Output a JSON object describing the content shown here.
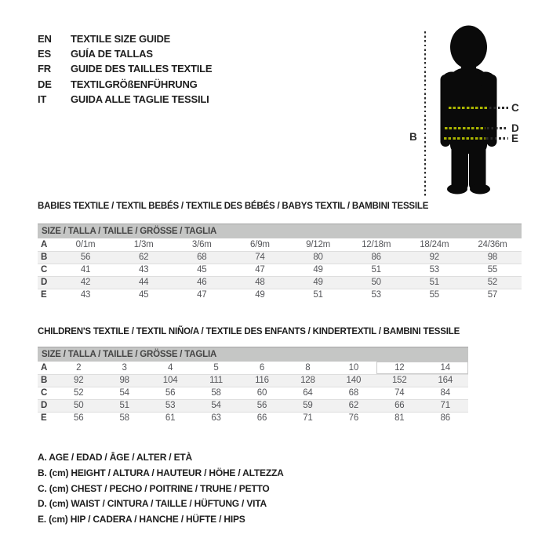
{
  "languages": [
    {
      "code": "EN",
      "title": "TEXTILE SIZE GUIDE"
    },
    {
      "code": "ES",
      "title": "GUÍA DE TALLAS"
    },
    {
      "code": "FR",
      "title": "GUIDE DES TAILLES TEXTILE"
    },
    {
      "code": "DE",
      "title": "TEXTILGRÖßENFÜHRUNG"
    },
    {
      "code": "IT",
      "title": "GUIDA ALLE TAGLIE TESSILI"
    }
  ],
  "figure": {
    "labels": {
      "height": "B",
      "chest": "C",
      "waist": "D",
      "hip": "E"
    },
    "dash_color": "#a9b400",
    "line_color": "#2b2b2b",
    "silhouette_color": "#0a0a0a"
  },
  "babies_table": {
    "section_title": "BABIES TEXTILE / TEXTIL BEBÉS / TEXTILE DES BÉBÉS / BABYS TEXTIL / BAMBINI TESSILE",
    "header": "SIZE / TALLA / TAILLE / GRÖSSE / TAGLIA",
    "rows": [
      {
        "label": "A",
        "values": [
          "0/1m",
          "1/3m",
          "3/6m",
          "6/9m",
          "9/12m",
          "12/18m",
          "18/24m",
          "24/36m"
        ]
      },
      {
        "label": "B",
        "values": [
          "56",
          "62",
          "68",
          "74",
          "80",
          "86",
          "92",
          "98"
        ]
      },
      {
        "label": "C",
        "values": [
          "41",
          "43",
          "45",
          "47",
          "49",
          "51",
          "53",
          "55"
        ]
      },
      {
        "label": "D",
        "values": [
          "42",
          "44",
          "46",
          "48",
          "49",
          "50",
          "51",
          "52"
        ]
      },
      {
        "label": "E",
        "values": [
          "43",
          "45",
          "47",
          "49",
          "51",
          "53",
          "55",
          "57"
        ]
      }
    ]
  },
  "children_table": {
    "section_title": "CHILDREN'S TEXTILE / TEXTIL NIÑO/A / TEXTILE DES ENFANTS / KINDERTEXTIL / BAMBINI TESSILE",
    "header": "SIZE / TALLA / TAILLE / GRÖSSE / TAGLIA",
    "highlight": {
      "row": 0,
      "cols": [
        7,
        8
      ]
    },
    "rows": [
      {
        "label": "A",
        "values": [
          "2",
          "3",
          "4",
          "5",
          "6",
          "8",
          "10",
          "12",
          "14"
        ]
      },
      {
        "label": "B",
        "values": [
          "92",
          "98",
          "104",
          "111",
          "116",
          "128",
          "140",
          "152",
          "164"
        ]
      },
      {
        "label": "C",
        "values": [
          "52",
          "54",
          "56",
          "58",
          "60",
          "64",
          "68",
          "74",
          "84"
        ]
      },
      {
        "label": "D",
        "values": [
          "50",
          "51",
          "53",
          "54",
          "56",
          "59",
          "62",
          "66",
          "71"
        ]
      },
      {
        "label": "E",
        "values": [
          "56",
          "58",
          "61",
          "63",
          "66",
          "71",
          "76",
          "81",
          "86"
        ]
      }
    ]
  },
  "legend": [
    "A. AGE / EDAD / ÂGE / ALTER / ETÀ",
    "B. (cm) HEIGHT / ALTURA / HAUTEUR / HÖHE / ALTEZZA",
    "C. (cm) CHEST / PECHO / POITRINE / TRUHE / PETTO",
    "D. (cm) WAIST / CINTURA / TAILLE / HÜFTUNG / VITA",
    "E. (cm) HIP / CADERA / HANCHE / HÜFTE / HIPS"
  ],
  "colors": {
    "table_header_bg": "#c5c6c5",
    "row_stripe": "#f1f1f1",
    "row_separator": "#dedede",
    "highlight_border": "#c9c9c9"
  }
}
